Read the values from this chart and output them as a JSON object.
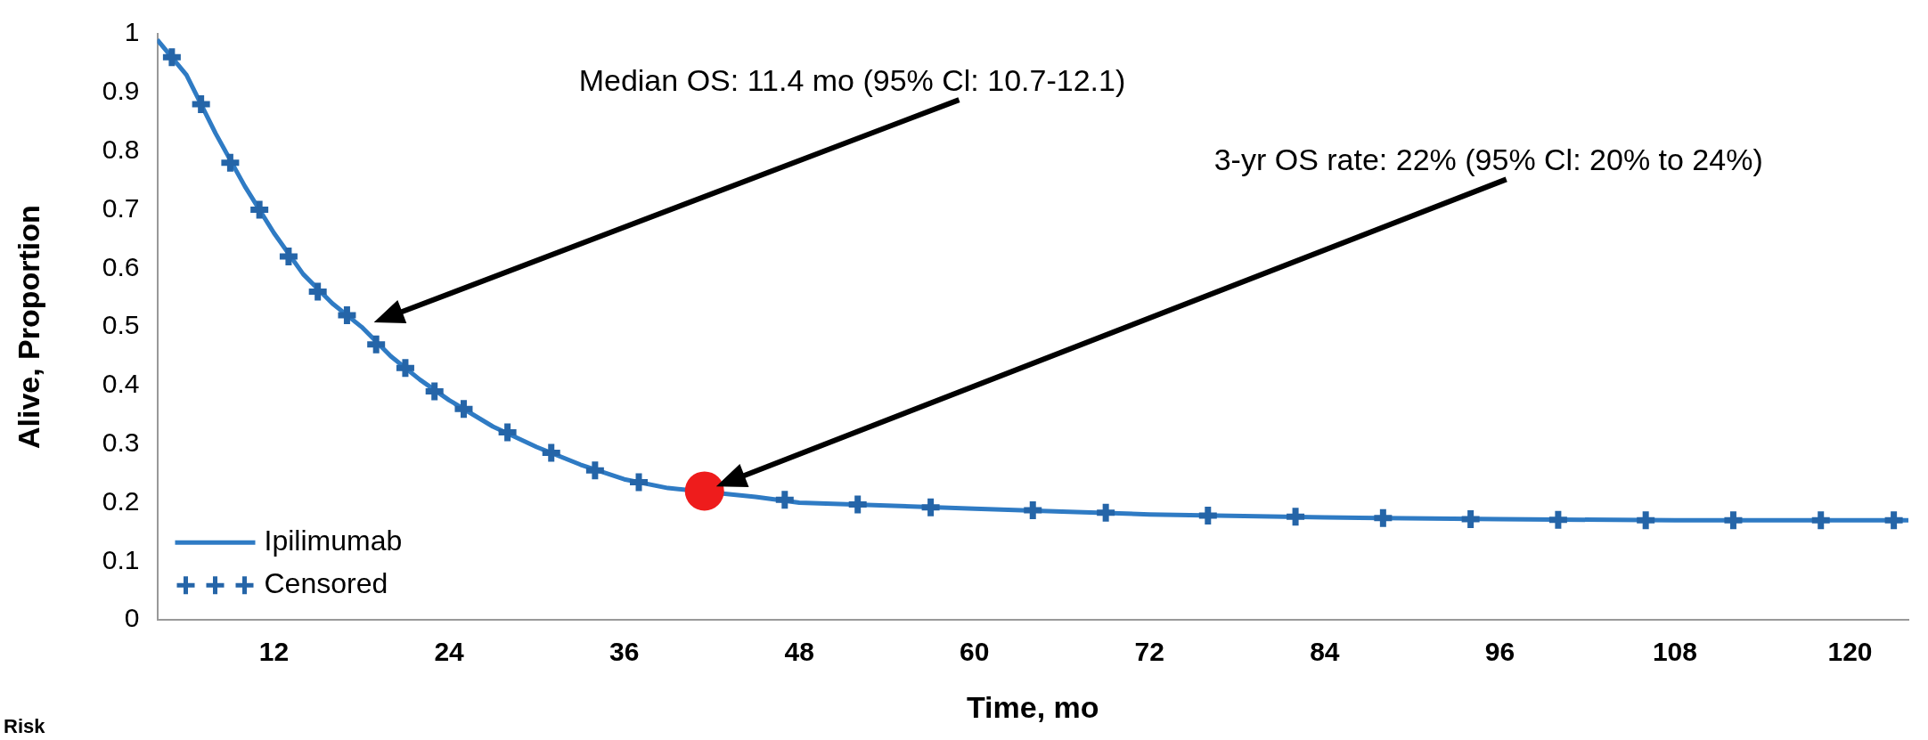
{
  "chart_data": {
    "type": "line",
    "xlabel": "Time, mo",
    "ylabel": "Alive, Proportion",
    "xlim": [
      4,
      124
    ],
    "xticks": [
      12,
      24,
      36,
      48,
      60,
      72,
      84,
      96,
      108,
      120
    ],
    "ylim": [
      0,
      1
    ],
    "yticks": [
      0,
      0.1,
      0.2,
      0.3,
      0.4,
      0.5,
      0.6,
      0.7,
      0.8,
      0.9,
      1
    ],
    "grid": false,
    "legend": "bottom left",
    "series": [
      {
        "name": "Ipilimumab",
        "color": "#2f7bc4",
        "marker": "none",
        "x": [
          4,
          6,
          8,
          10,
          12,
          14,
          16,
          18,
          20,
          22,
          24,
          27,
          30,
          33,
          36,
          39,
          45,
          48,
          54,
          60,
          66,
          72,
          84,
          96,
          108,
          120,
          124
        ],
        "values": [
          0.99,
          0.93,
          0.83,
          0.74,
          0.66,
          0.59,
          0.54,
          0.5,
          0.45,
          0.41,
          0.375,
          0.33,
          0.295,
          0.265,
          0.24,
          0.225,
          0.21,
          0.2,
          0.195,
          0.19,
          0.185,
          0.18,
          0.175,
          0.172,
          0.17,
          0.17,
          0.17
        ]
      },
      {
        "name": "Censored",
        "color": "#2565a8",
        "type": "scatter",
        "marker": "cross",
        "x": [
          5,
          7,
          9,
          11,
          13,
          15,
          17,
          19,
          21,
          23,
          25,
          28,
          31,
          34,
          37,
          47,
          52,
          57,
          64,
          69,
          76,
          82,
          88,
          94,
          100,
          106,
          112,
          118,
          123
        ],
        "values": [
          0.96,
          0.88,
          0.78,
          0.7,
          0.62,
          0.56,
          0.52,
          0.47,
          0.43,
          0.39,
          0.36,
          0.32,
          0.285,
          0.255,
          0.235,
          0.205,
          0.197,
          0.192,
          0.187,
          0.183,
          0.178,
          0.176,
          0.174,
          0.172,
          0.171,
          0.17,
          0.17,
          0.17,
          0.17
        ]
      },
      {
        "color": "#ee1c1c",
        "type": "scatter",
        "marker": "circle",
        "x": [
          41.5
        ],
        "values": [
          0.22
        ]
      }
    ],
    "annotations": [
      "Median OS: 11.4 mo (95% Cl: 10.7-12.1)",
      "3-yr OS rate: 22% (95% Cl: 20% to 24%)",
      "Risk"
    ]
  }
}
